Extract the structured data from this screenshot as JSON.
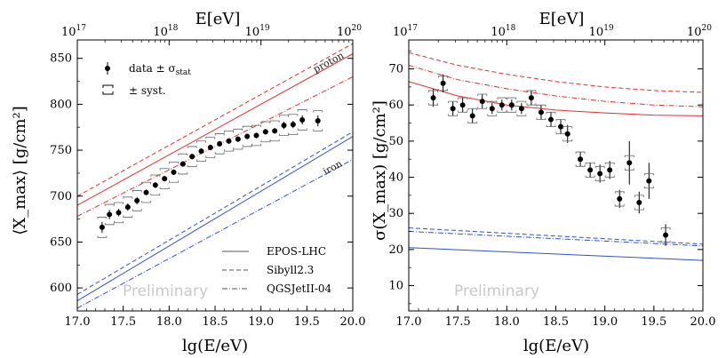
{
  "chart_data": [
    {
      "type": "scatter",
      "xlabel": "lg(E/eV)",
      "ylabel": "⟨X_max⟩ [g/cm²]",
      "top_axis_label": "E[eV]",
      "top_ticks": [
        "10",
        "10",
        "10",
        "10"
      ],
      "top_tick_exponents": [
        "17",
        "18",
        "19",
        "20"
      ],
      "top_tick_positions": [
        17,
        18,
        19,
        20
      ],
      "xlim": [
        17.0,
        20.0
      ],
      "ylim": [
        575,
        870
      ],
      "xticks": [
        "17.0",
        "17.5",
        "18.0",
        "18.5",
        "19.0",
        "19.5",
        "20.0"
      ],
      "yticks": [
        "600",
        "650",
        "700",
        "750",
        "800",
        "850"
      ],
      "legend": {
        "data_label": "data ± σ",
        "data_subscript": "stat",
        "syst_label": "± syst.",
        "models": [
          "EPOS-LHC",
          "Sibyll2.3",
          "QGSJetII-04"
        ]
      },
      "annotations": {
        "proton": "proton",
        "iron": "iron",
        "watermark": "Preliminary"
      },
      "data": {
        "x": [
          17.27,
          17.35,
          17.45,
          17.55,
          17.65,
          17.75,
          17.85,
          17.95,
          18.05,
          18.15,
          18.25,
          18.35,
          18.45,
          18.55,
          18.65,
          18.75,
          18.85,
          18.95,
          19.05,
          19.15,
          19.25,
          19.35,
          19.45,
          19.62
        ],
        "y": [
          666,
          680,
          682,
          688,
          695,
          704,
          712,
          719,
          726,
          735,
          743,
          749,
          753,
          757,
          760,
          762,
          765,
          766,
          770,
          771,
          777,
          778,
          783,
          782
        ],
        "err": [
          6,
          5,
          4,
          4,
          4,
          3,
          3,
          3,
          3,
          3,
          3,
          3,
          3,
          3,
          3,
          3,
          3,
          3,
          3,
          3,
          4,
          4,
          5,
          6
        ],
        "syst": [
          11,
          11,
          11,
          11,
          11,
          11,
          11,
          11,
          11,
          11,
          11,
          11,
          11,
          11,
          11,
          11,
          11,
          11,
          11,
          11,
          11,
          11,
          11,
          11
        ]
      },
      "series": [
        {
          "name": "proton EPOS-LHC",
          "color": "#e03030",
          "style": "solid",
          "x": [
            17,
            20
          ],
          "y": [
            690,
            855
          ]
        },
        {
          "name": "proton Sibyll2.3",
          "color": "#e03030",
          "style": "dashed",
          "x": [
            17,
            20
          ],
          "y": [
            700,
            866
          ]
        },
        {
          "name": "proton QGSJetII-04",
          "color": "#e03030",
          "style": "dashdot",
          "x": [
            17,
            20
          ],
          "y": [
            678,
            830
          ]
        },
        {
          "name": "iron EPOS-LHC",
          "color": "#3050d0",
          "style": "solid",
          "x": [
            17,
            20
          ],
          "y": [
            586,
            765
          ]
        },
        {
          "name": "iron Sibyll2.3",
          "color": "#3050d0",
          "style": "dashed",
          "x": [
            17,
            20
          ],
          "y": [
            593,
            770
          ]
        },
        {
          "name": "iron QGSJetII-04",
          "color": "#3050d0",
          "style": "dashdot",
          "x": [
            17,
            20
          ],
          "y": [
            578,
            740
          ]
        }
      ]
    },
    {
      "type": "scatter",
      "xlabel": "lg(E/eV)",
      "ylabel": "σ(X_max) [g/cm²]",
      "top_axis_label": "E[eV]",
      "top_ticks": [
        "10",
        "10",
        "10",
        "10"
      ],
      "top_tick_exponents": [
        "17",
        "18",
        "19",
        "20"
      ],
      "top_tick_positions": [
        17,
        18,
        19,
        20
      ],
      "xlim": [
        17.0,
        20.0
      ],
      "ylim": [
        3,
        78
      ],
      "xticks": [
        "17.0",
        "17.5",
        "18.0",
        "18.5",
        "19.0",
        "19.5",
        "20.0"
      ],
      "yticks": [
        "10",
        "20",
        "30",
        "40",
        "50",
        "60",
        "70"
      ],
      "annotations": {
        "watermark": "Preliminary"
      },
      "data": {
        "x": [
          17.25,
          17.35,
          17.45,
          17.55,
          17.65,
          17.75,
          17.85,
          17.95,
          18.05,
          18.15,
          18.25,
          18.35,
          18.45,
          18.55,
          18.62,
          18.75,
          18.85,
          18.95,
          19.05,
          19.15,
          19.25,
          19.35,
          19.45,
          19.62
        ],
        "y": [
          62,
          66,
          59,
          60,
          57,
          61,
          59,
          60,
          60,
          59,
          62,
          58,
          56,
          54,
          52,
          45,
          42,
          41,
          42,
          34,
          44,
          33,
          39,
          24
        ],
        "err": [
          2.5,
          2.5,
          2,
          2,
          2,
          2,
          1.5,
          1.5,
          1.5,
          1.5,
          2,
          2,
          2,
          2,
          2.5,
          2,
          2,
          2.5,
          2.5,
          2.5,
          6,
          3,
          5,
          3
        ],
        "syst": [
          2,
          2,
          2,
          2,
          2,
          2,
          2,
          2,
          2,
          2,
          2,
          2,
          2,
          2,
          2,
          2,
          2,
          2,
          2,
          2,
          2,
          2,
          2,
          2
        ]
      },
      "series": [
        {
          "name": "proton EPOS-LHC",
          "color": "#e03030",
          "style": "solid",
          "x": [
            17,
            17.5,
            18,
            18.5,
            19,
            19.5,
            20
          ],
          "y": [
            66.5,
            62.5,
            60,
            58.6,
            57.8,
            57.2,
            57
          ]
        },
        {
          "name": "proton Sibyll2.3",
          "color": "#e03030",
          "style": "dashed",
          "x": [
            17,
            17.5,
            18,
            18.5,
            19,
            19.5,
            20
          ],
          "y": [
            74.5,
            71,
            68.5,
            66.5,
            65,
            64,
            63.5
          ]
        },
        {
          "name": "proton QGSJetII-04",
          "color": "#e03030",
          "style": "dashdot",
          "x": [
            17,
            17.5,
            18,
            18.5,
            19,
            19.5,
            20
          ],
          "y": [
            71,
            67,
            64.5,
            62.5,
            61,
            60,
            59.5
          ]
        },
        {
          "name": "iron EPOS-LHC",
          "color": "#3050d0",
          "style": "solid",
          "x": [
            17,
            20
          ],
          "y": [
            20.5,
            17
          ]
        },
        {
          "name": "iron Sibyll2.3",
          "color": "#3050d0",
          "style": "dashed",
          "x": [
            17,
            20
          ],
          "y": [
            26,
            21.5
          ]
        },
        {
          "name": "iron QGSJetII-04",
          "color": "#3050d0",
          "style": "dashdot",
          "x": [
            17,
            20
          ],
          "y": [
            25,
            21
          ]
        }
      ]
    }
  ]
}
